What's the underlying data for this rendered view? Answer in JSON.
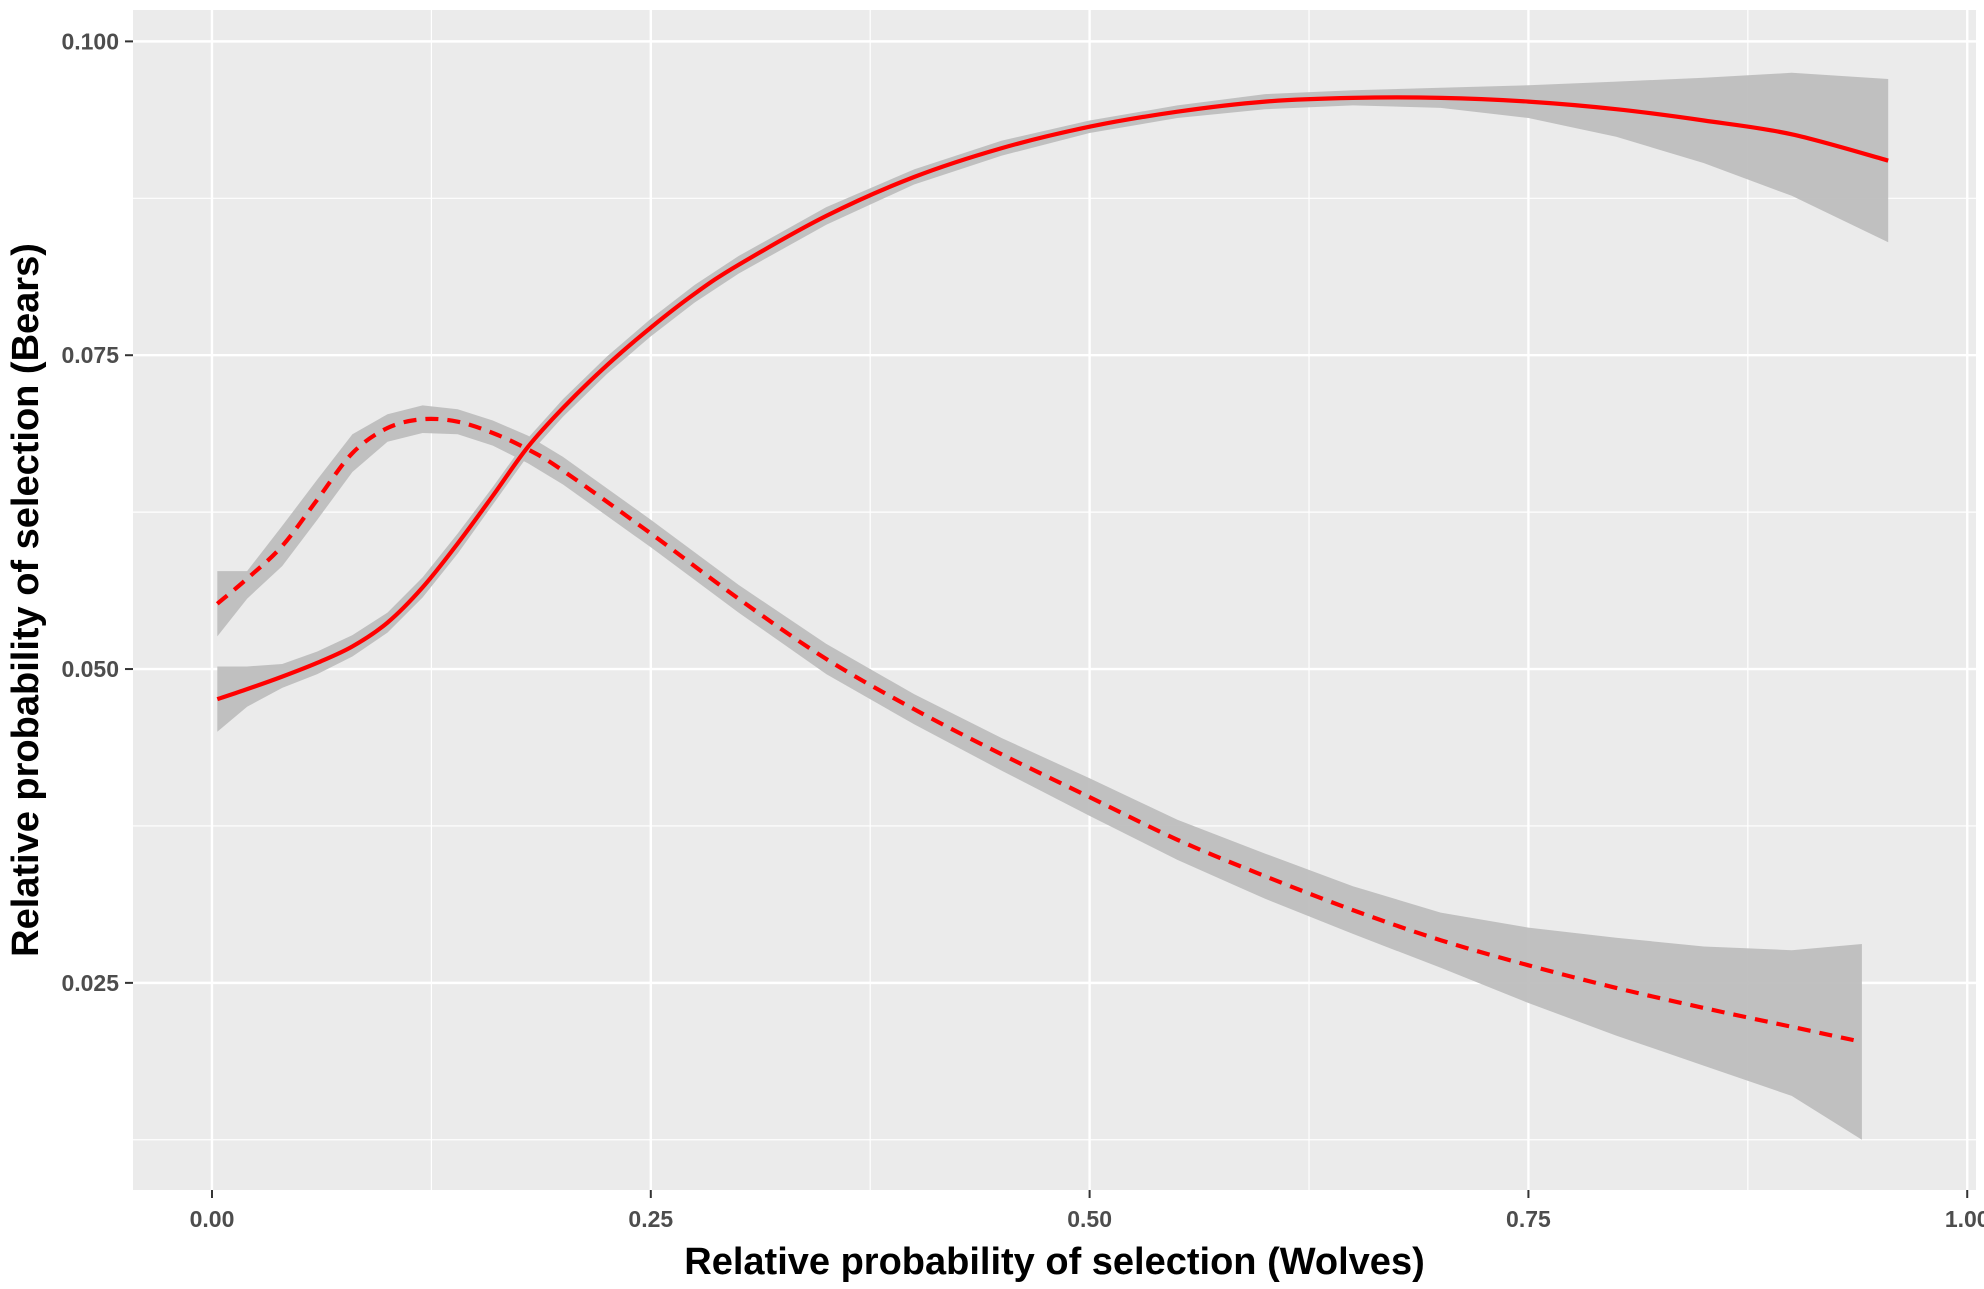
{
  "chart_data": {
    "type": "line",
    "title": "",
    "xlabel": "Relative probability of selection (Wolves)",
    "ylabel": "Relative probability of selection (Bears)",
    "xlim": [
      -0.045,
      1.005
    ],
    "ylim": [
      0.0085,
      0.1025
    ],
    "x_ticks": [
      0.0,
      0.25,
      0.5,
      0.75,
      1.0
    ],
    "x_tick_labels": [
      "0.00",
      "0.25",
      "0.50",
      "0.75",
      "1.00"
    ],
    "y_ticks": [
      0.025,
      0.05,
      0.075,
      0.1
    ],
    "y_tick_labels": [
      "0.025",
      "0.050",
      "0.075",
      "0.100"
    ],
    "grid": true,
    "background_color": "#ebebeb",
    "line_color": "#ff0000",
    "ribbon_color": "#bebebe",
    "series": [
      {
        "line_style": "solid",
        "x": [
          0.003,
          0.02,
          0.04,
          0.06,
          0.08,
          0.1,
          0.12,
          0.14,
          0.16,
          0.18,
          0.2,
          0.225,
          0.25,
          0.275,
          0.3,
          0.35,
          0.4,
          0.45,
          0.5,
          0.55,
          0.6,
          0.65,
          0.7,
          0.75,
          0.8,
          0.85,
          0.9,
          0.955
        ],
        "y": [
          0.0476,
          0.0484,
          0.0494,
          0.0505,
          0.0518,
          0.0537,
          0.0565,
          0.06,
          0.0638,
          0.0677,
          0.0708,
          0.0742,
          0.0772,
          0.0799,
          0.0822,
          0.0861,
          0.0892,
          0.0915,
          0.0932,
          0.0944,
          0.0952,
          0.0955,
          0.0955,
          0.0952,
          0.0946,
          0.0937,
          0.0926,
          0.0905
        ],
        "lower": [
          0.045,
          0.047,
          0.0485,
          0.0496,
          0.051,
          0.0529,
          0.0557,
          0.0592,
          0.0631,
          0.067,
          0.0701,
          0.0735,
          0.0765,
          0.0792,
          0.0815,
          0.0854,
          0.0886,
          0.0909,
          0.0927,
          0.0939,
          0.0946,
          0.0949,
          0.0947,
          0.0939,
          0.0924,
          0.0903,
          0.0877,
          0.084
        ],
        "upper": [
          0.0502,
          0.0502,
          0.0504,
          0.0514,
          0.0527,
          0.0545,
          0.0573,
          0.0608,
          0.0645,
          0.0684,
          0.0715,
          0.0749,
          0.0779,
          0.0806,
          0.0829,
          0.0868,
          0.0898,
          0.0921,
          0.0937,
          0.0949,
          0.0958,
          0.0961,
          0.0963,
          0.0965,
          0.0968,
          0.0971,
          0.0975,
          0.097
        ]
      },
      {
        "line_style": "dashed",
        "x": [
          0.003,
          0.02,
          0.04,
          0.06,
          0.08,
          0.1,
          0.12,
          0.14,
          0.16,
          0.18,
          0.2,
          0.25,
          0.3,
          0.35,
          0.4,
          0.45,
          0.5,
          0.55,
          0.6,
          0.65,
          0.7,
          0.75,
          0.8,
          0.85,
          0.9,
          0.94
        ],
        "y": [
          0.0552,
          0.0572,
          0.0598,
          0.0635,
          0.0672,
          0.0692,
          0.0699,
          0.0697,
          0.0688,
          0.0675,
          0.0658,
          0.0608,
          0.0556,
          0.0508,
          0.0468,
          0.0432,
          0.0398,
          0.0364,
          0.0335,
          0.0308,
          0.0284,
          0.0264,
          0.0246,
          0.023,
          0.0215,
          0.0203
        ],
        "lower": [
          0.0526,
          0.0556,
          0.0582,
          0.0619,
          0.0657,
          0.0681,
          0.0688,
          0.0687,
          0.0678,
          0.0664,
          0.0647,
          0.0597,
          0.0545,
          0.0496,
          0.0456,
          0.0419,
          0.0383,
          0.0348,
          0.0317,
          0.0289,
          0.0262,
          0.0234,
          0.0208,
          0.0184,
          0.016,
          0.0125
        ],
        "upper": [
          0.0578,
          0.0578,
          0.0614,
          0.0651,
          0.0687,
          0.0703,
          0.071,
          0.0707,
          0.0698,
          0.0686,
          0.0669,
          0.0619,
          0.0567,
          0.052,
          0.048,
          0.0445,
          0.0413,
          0.038,
          0.0353,
          0.0327,
          0.0306,
          0.0294,
          0.0286,
          0.0279,
          0.0276,
          0.0281
        ]
      }
    ]
  }
}
